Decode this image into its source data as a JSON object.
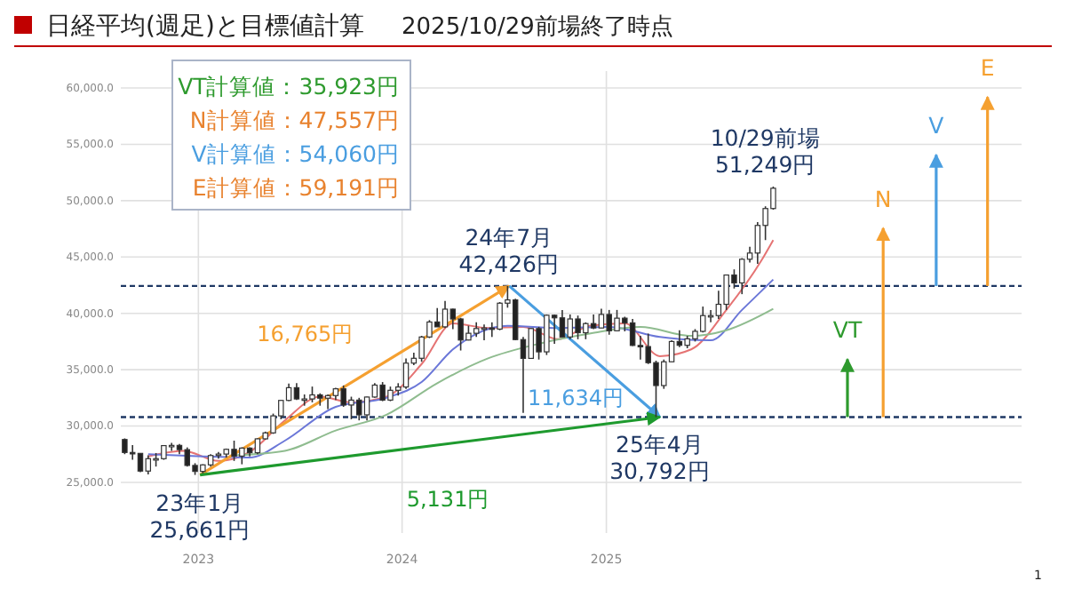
{
  "chart_data": {
    "type": "candlestick",
    "title": "日経平均(週足)と目標値計算",
    "subtitle": "2025/10/29前場終了時点",
    "x": [
      "2022-08-22",
      "2022-09-05",
      "2022-09-19",
      "2022-10-03",
      "2022-10-17",
      "2022-10-31",
      "2022-11-14",
      "2022-11-28",
      "2022-12-12",
      "2022-12-26",
      "2023-01-09",
      "2023-01-23",
      "2023-02-06",
      "2023-02-20",
      "2023-03-06",
      "2023-03-20",
      "2023-04-03",
      "2023-04-17",
      "2023-05-01",
      "2023-05-15",
      "2023-05-29",
      "2023-06-12",
      "2023-06-26",
      "2023-07-10",
      "2023-07-24",
      "2023-08-07",
      "2023-08-21",
      "2023-09-04",
      "2023-09-18",
      "2023-10-02",
      "2023-10-16",
      "2023-10-30",
      "2023-11-13",
      "2023-11-27",
      "2023-12-11",
      "2023-12-25",
      "2024-01-08",
      "2024-01-22",
      "2024-02-05",
      "2024-02-19",
      "2024-03-04",
      "2024-03-18",
      "2024-04-01",
      "2024-04-15",
      "2024-04-29",
      "2024-05-13",
      "2024-05-27",
      "2024-06-10",
      "2024-06-24",
      "2024-07-08",
      "2024-07-22",
      "2024-08-05",
      "2024-08-19",
      "2024-09-02",
      "2024-09-16",
      "2024-09-30",
      "2024-10-14",
      "2024-10-28",
      "2024-11-11",
      "2024-11-25",
      "2024-12-09",
      "2024-12-23",
      "2025-01-06",
      "2025-01-20",
      "2025-02-03",
      "2025-02-17",
      "2025-03-03",
      "2025-03-17",
      "2025-03-31",
      "2025-04-14",
      "2025-04-28",
      "2025-05-12",
      "2025-05-26",
      "2025-06-09",
      "2025-06-23",
      "2025-07-07",
      "2025-07-21",
      "2025-08-04",
      "2025-08-18",
      "2025-09-01",
      "2025-09-15",
      "2025-09-29",
      "2025-10-13",
      "2025-10-27"
    ],
    "ohlc": [
      [
        28800,
        28900,
        27500,
        27650
      ],
      [
        27650,
        28300,
        27000,
        27570
      ],
      [
        27570,
        27600,
        25900,
        26000
      ],
      [
        26000,
        27400,
        25700,
        27100
      ],
      [
        27100,
        27600,
        26400,
        27100
      ],
      [
        27100,
        28300,
        27000,
        28260
      ],
      [
        28260,
        28500,
        27800,
        28280
      ],
      [
        28280,
        28400,
        27500,
        27900
      ],
      [
        27900,
        28100,
        26400,
        26500
      ],
      [
        26500,
        26700,
        25661,
        25970
      ],
      [
        25970,
        26600,
        25800,
        26550
      ],
      [
        26550,
        27500,
        26400,
        27380
      ],
      [
        27380,
        27700,
        27100,
        27510
      ],
      [
        27510,
        28000,
        27200,
        27930
      ],
      [
        27930,
        28700,
        26900,
        27330
      ],
      [
        27330,
        28100,
        26600,
        28040
      ],
      [
        28040,
        28100,
        27300,
        27630
      ],
      [
        27630,
        28900,
        27500,
        28860
      ],
      [
        28860,
        29500,
        28800,
        29390
      ],
      [
        29390,
        31100,
        29300,
        30900
      ],
      [
        30900,
        32300,
        30600,
        32270
      ],
      [
        32270,
        33770,
        32200,
        33400
      ],
      [
        33400,
        33800,
        32300,
        32400
      ],
      [
        32400,
        32800,
        31800,
        32400
      ],
      [
        32400,
        33500,
        32100,
        32760
      ],
      [
        32760,
        32900,
        31800,
        32470
      ],
      [
        32470,
        32800,
        31500,
        32700
      ],
      [
        32700,
        33400,
        32300,
        33300
      ],
      [
        33300,
        33600,
        31700,
        31860
      ],
      [
        31860,
        32600,
        30600,
        32300
      ],
      [
        32300,
        32500,
        30500,
        30990
      ],
      [
        30990,
        32600,
        30500,
        32570
      ],
      [
        32570,
        33800,
        32500,
        33630
      ],
      [
        33630,
        33900,
        32200,
        32300
      ],
      [
        32300,
        33500,
        32200,
        33170
      ],
      [
        33170,
        33800,
        32700,
        33460
      ],
      [
        33460,
        36000,
        33300,
        35580
      ],
      [
        35580,
        36500,
        35400,
        36010
      ],
      [
        36010,
        38000,
        35700,
        37900
      ],
      [
        37900,
        39400,
        37800,
        39230
      ],
      [
        39230,
        40470,
        38800,
        38800
      ],
      [
        38800,
        41100,
        38700,
        40370
      ],
      [
        40370,
        40400,
        38600,
        39500
      ],
      [
        39500,
        39600,
        36700,
        37630
      ],
      [
        37630,
        38900,
        37600,
        38230
      ],
      [
        38230,
        39200,
        37900,
        38650
      ],
      [
        38650,
        39000,
        37600,
        38700
      ],
      [
        38700,
        39200,
        37900,
        38600
      ],
      [
        38600,
        41000,
        38500,
        40900
      ],
      [
        40900,
        42426,
        40500,
        41190
      ],
      [
        41190,
        41300,
        37600,
        37670
      ],
      [
        37670,
        37900,
        31156,
        36000
      ],
      [
        36000,
        38700,
        36000,
        38650
      ],
      [
        38650,
        38800,
        35900,
        36580
      ],
      [
        36580,
        39900,
        36300,
        39830
      ],
      [
        39830,
        39900,
        37300,
        39600
      ],
      [
        39600,
        40300,
        37900,
        37900
      ],
      [
        37900,
        39900,
        37700,
        39500
      ],
      [
        39500,
        39800,
        37700,
        38280
      ],
      [
        38280,
        39200,
        37700,
        39090
      ],
      [
        39090,
        39900,
        38600,
        38700
      ],
      [
        38700,
        40400,
        38700,
        39900
      ],
      [
        39900,
        40300,
        38100,
        38450
      ],
      [
        38450,
        40300,
        38400,
        39570
      ],
      [
        39570,
        39700,
        38400,
        39150
      ],
      [
        39150,
        39500,
        37100,
        37150
      ],
      [
        37150,
        38000,
        35900,
        37050
      ],
      [
        37050,
        38200,
        35500,
        35620
      ],
      [
        35620,
        35800,
        30792,
        33590
      ],
      [
        33590,
        35900,
        33300,
        35700
      ],
      [
        35700,
        37600,
        35700,
        37500
      ],
      [
        37500,
        38500,
        37000,
        37160
      ],
      [
        37160,
        38000,
        36900,
        37740
      ],
      [
        37740,
        38600,
        37500,
        38400
      ],
      [
        38400,
        40600,
        38300,
        39800
      ],
      [
        39800,
        40300,
        39200,
        39800
      ],
      [
        39800,
        42000,
        39500,
        40800
      ],
      [
        40800,
        43400,
        40300,
        43400
      ],
      [
        43400,
        43900,
        42200,
        42700
      ],
      [
        42700,
        44900,
        41700,
        44800
      ],
      [
        44800,
        45900,
        44500,
        45350
      ],
      [
        45350,
        48100,
        44400,
        47800
      ],
      [
        47800,
        49500,
        46500,
        49300
      ],
      [
        49300,
        51249,
        49200,
        51100
      ]
    ],
    "series": [
      {
        "type": "line",
        "color": "#e57373",
        "x": [
          "2022-10-03",
          "2022-12-05",
          "2023-02-06",
          "2023-04-03",
          "2023-06-05",
          "2023-08-07",
          "2023-10-02",
          "2023-12-04",
          "2024-02-05",
          "2024-04-01",
          "2024-06-03",
          "2024-08-05",
          "2024-10-07",
          "2024-12-02",
          "2025-02-03",
          "2025-04-07",
          "2025-06-02",
          "2025-08-04",
          "2025-10-06",
          "2025-10-27"
        ],
        "values": [
          27300,
          27800,
          26900,
          27700,
          30500,
          32600,
          32100,
          32600,
          35500,
          39100,
          38700,
          38800,
          37700,
          38900,
          39100,
          36200,
          36800,
          40300,
          44700,
          46500
        ]
      },
      {
        "type": "line",
        "color": "#6b77d8",
        "x": [
          "2022-10-03",
          "2023-01-09",
          "2023-04-03",
          "2023-06-05",
          "2023-09-04",
          "2023-12-04",
          "2024-02-05",
          "2024-04-01",
          "2024-07-08",
          "2024-10-07",
          "2025-01-06",
          "2025-04-07",
          "2025-07-07",
          "2025-09-01",
          "2025-10-27"
        ],
        "values": [
          27500,
          27300,
          27200,
          28700,
          31700,
          32500,
          33900,
          36800,
          38900,
          38700,
          38800,
          37900,
          37600,
          40300,
          43000
        ]
      },
      {
        "type": "line",
        "color": "#8fbc8f",
        "x": [
          "2023-03-06",
          "2023-06-05",
          "2023-09-04",
          "2023-12-04",
          "2024-03-04",
          "2024-06-03",
          "2024-09-02",
          "2024-12-02",
          "2025-03-03",
          "2025-06-02",
          "2025-08-04",
          "2025-10-27"
        ],
        "values": [
          27400,
          27800,
          29600,
          31000,
          33800,
          36000,
          37300,
          38200,
          38800,
          38000,
          38500,
          40400
        ]
      },
      {
        "type": "line",
        "name": "16,765円",
        "color": "#f5a030",
        "x": [
          "2023-01-04",
          "2024-07-11"
        ],
        "values": [
          25661,
          42426
        ]
      },
      {
        "type": "line",
        "name": "11,634円",
        "color": "#4a9ee0",
        "x": [
          "2024-07-11",
          "2025-04-07"
        ],
        "values": [
          42426,
          30792
        ]
      },
      {
        "type": "line",
        "name": "5,131円",
        "color": "#1e9a2e",
        "x": [
          "2023-01-04",
          "2025-04-07"
        ],
        "values": [
          25661,
          30792
        ]
      },
      {
        "type": "line",
        "name": "VT",
        "color": "#2e9a2e",
        "x": [
          "2026-03-09",
          "2026-03-09"
        ],
        "values": [
          30792,
          35923
        ]
      },
      {
        "type": "line",
        "name": "N",
        "color": "#f5a030",
        "x": [
          "2026-05-12",
          "2026-05-12"
        ],
        "values": [
          30792,
          47557
        ]
      },
      {
        "type": "line",
        "name": "V",
        "color": "#4a9ee0",
        "x": [
          "2026-08-15",
          "2026-08-15"
        ],
        "values": [
          42426,
          54060
        ]
      },
      {
        "type": "line",
        "name": "E",
        "color": "#f5a030",
        "x": [
          "2026-11-15",
          "2026-11-15"
        ],
        "values": [
          42426,
          59191
        ]
      }
    ],
    "ref_lines": [
      {
        "axis": "y",
        "value": 42426,
        "color": "#1f3864",
        "line_style": "dashed"
      },
      {
        "axis": "y",
        "value": 30792,
        "color": "#1f3864",
        "line_style": "dashed"
      }
    ],
    "annotations": [
      "VT計算値：35,923円",
      "N計算値：47,557円",
      "V計算値：54,060円",
      "E計算値：59,191円",
      {
        "text": "23年1月\n25,661円",
        "x": "2023-01-04",
        "y": 25661
      },
      {
        "text": "24年7月\n42,426円",
        "x": "2024-07-11",
        "y": 42426
      },
      {
        "text": "25年4月\n30,792円",
        "x": "2025-04-07",
        "y": 30792
      },
      {
        "text": "10/29前場\n51,249円",
        "x": "2025-10-29",
        "y": 51249
      },
      "1"
    ],
    "xlim": [
      "2022-08-15",
      "2027-01-15"
    ],
    "xticks": [
      {
        "value": "2023-01-01",
        "label": "2023"
      },
      {
        "value": "2024-01-01",
        "label": "2024"
      },
      {
        "value": "2025-01-01",
        "label": "2025"
      }
    ],
    "ylim": [
      20500,
      61500
    ],
    "yticks": [
      {
        "value": 25000,
        "label": "25,000.0"
      },
      {
        "value": 30000,
        "label": "30,000.0"
      },
      {
        "value": 35000,
        "label": "35,000.0"
      },
      {
        "value": 40000,
        "label": "40,000.0"
      },
      {
        "value": 45000,
        "label": "45,000.0"
      },
      {
        "value": 50000,
        "label": "50,000.0"
      },
      {
        "value": 55000,
        "label": "55,000.0"
      },
      {
        "value": 60000,
        "label": "60,000.0"
      }
    ],
    "grid": true
  }
}
